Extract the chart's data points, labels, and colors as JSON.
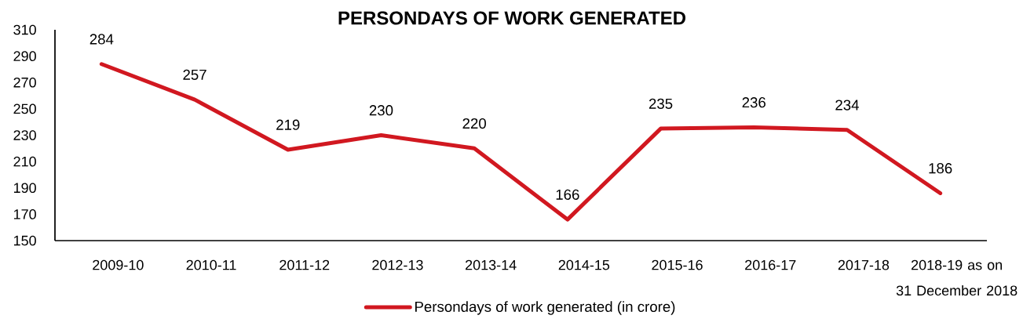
{
  "chart_data": {
    "type": "line",
    "title": "PERSONDAYS OF WORK GENERATED",
    "categories": [
      "2009-10",
      "2010-11",
      "2011-12",
      "2012-13",
      "2013-14",
      "2014-15",
      "2015-16",
      "2016-17",
      "2017-18",
      "2018-19 as on 31 December 2018"
    ],
    "series": [
      {
        "name": "Persondays of work generated (in crore)",
        "color": "#d11820",
        "values": [
          284,
          257,
          219,
          230,
          220,
          166,
          235,
          236,
          234,
          186
        ]
      }
    ],
    "ylim": [
      150,
      310
    ],
    "yticks": [
      150,
      170,
      190,
      210,
      230,
      250,
      270,
      290,
      310
    ],
    "data_labels": true,
    "legend": "bottom",
    "marker": "none",
    "line_style": "solid"
  }
}
